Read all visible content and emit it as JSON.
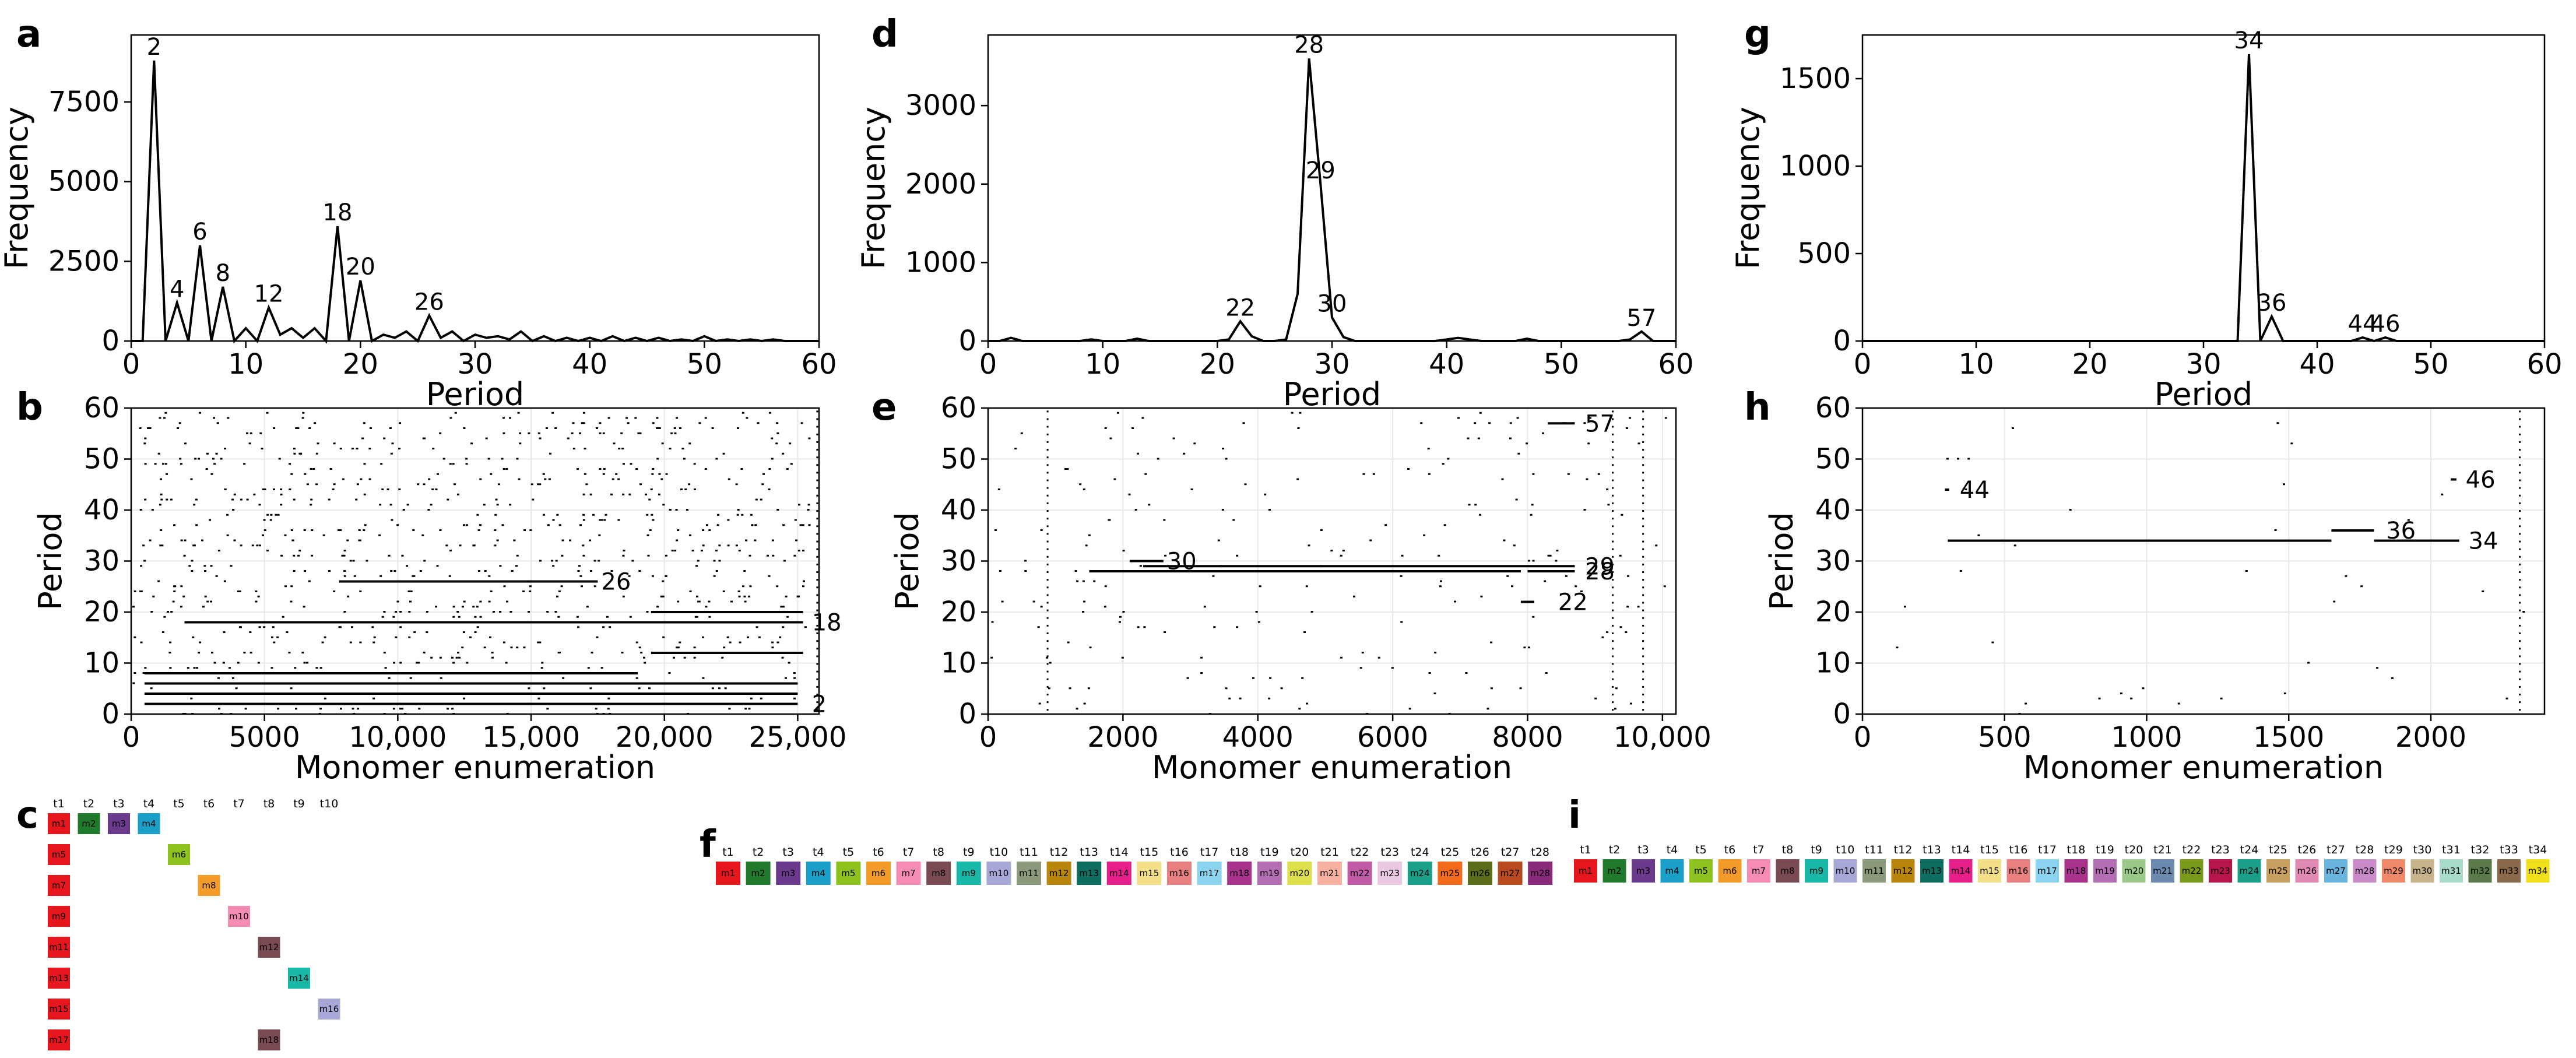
{
  "chart_data": [
    {
      "panel": "a",
      "type": "line",
      "xlabel": "Period",
      "ylabel": "Frequency",
      "xlim": [
        0,
        60
      ],
      "ylim": [
        0,
        9600
      ],
      "xticks": [
        0,
        10,
        20,
        30,
        40,
        50,
        60
      ],
      "xtick_labels": [
        "0",
        "10",
        "20",
        "30",
        "40",
        "50",
        "60"
      ],
      "yticks": [
        0,
        2500,
        5000,
        7500
      ],
      "ytick_labels": [
        "0",
        "2500",
        "5000",
        "7500"
      ],
      "x": [
        0,
        1,
        2,
        3,
        4,
        5,
        6,
        7,
        8,
        9,
        10,
        11,
        12,
        13,
        14,
        15,
        16,
        17,
        18,
        19,
        20,
        21,
        22,
        23,
        24,
        25,
        26,
        27,
        28,
        29,
        30,
        31,
        32,
        33,
        34,
        35,
        36,
        37,
        38,
        39,
        40,
        41,
        42,
        43,
        44,
        45,
        46,
        47,
        48,
        49,
        50,
        51,
        52,
        53,
        54,
        55,
        56,
        57,
        58,
        59,
        60
      ],
      "y": [
        0,
        0,
        8800,
        0,
        1200,
        0,
        3000,
        0,
        1700,
        0,
        400,
        0,
        1050,
        200,
        400,
        100,
        400,
        0,
        3600,
        0,
        1900,
        0,
        200,
        100,
        300,
        0,
        800,
        100,
        300,
        0,
        200,
        100,
        150,
        50,
        300,
        0,
        150,
        0,
        100,
        0,
        100,
        0,
        150,
        0,
        100,
        0,
        100,
        0,
        50,
        0,
        150,
        0,
        50,
        0,
        50,
        0,
        50,
        0,
        0,
        0,
        0
      ],
      "annotations": [
        {
          "x": 2,
          "y": 8800,
          "text": "2"
        },
        {
          "x": 4,
          "y": 1200,
          "text": "4"
        },
        {
          "x": 6,
          "y": 3000,
          "text": "6"
        },
        {
          "x": 8,
          "y": 1700,
          "text": "8"
        },
        {
          "x": 12,
          "y": 1050,
          "text": "12"
        },
        {
          "x": 18,
          "y": 3600,
          "text": "18"
        },
        {
          "x": 20,
          "y": 1900,
          "text": "20"
        },
        {
          "x": 26,
          "y": 800,
          "text": "26"
        }
      ]
    },
    {
      "panel": "d",
      "type": "line",
      "xlabel": "Period",
      "ylabel": "Frequency",
      "xlim": [
        0,
        60
      ],
      "ylim": [
        0,
        3900
      ],
      "xticks": [
        0,
        10,
        20,
        30,
        40,
        50,
        60
      ],
      "xtick_labels": [
        "0",
        "10",
        "20",
        "30",
        "40",
        "50",
        "60"
      ],
      "yticks": [
        0,
        1000,
        2000,
        3000
      ],
      "ytick_labels": [
        "0",
        "1000",
        "2000",
        "3000"
      ],
      "x": [
        0,
        1,
        2,
        3,
        4,
        5,
        6,
        7,
        8,
        9,
        10,
        11,
        12,
        13,
        14,
        15,
        16,
        17,
        18,
        19,
        20,
        21,
        22,
        23,
        24,
        25,
        26,
        27,
        28,
        29,
        30,
        31,
        32,
        33,
        34,
        35,
        36,
        37,
        38,
        39,
        40,
        41,
        42,
        43,
        44,
        45,
        46,
        47,
        48,
        49,
        50,
        51,
        52,
        53,
        54,
        55,
        56,
        57,
        58,
        59,
        60
      ],
      "y": [
        0,
        0,
        40,
        0,
        0,
        0,
        0,
        0,
        0,
        20,
        0,
        0,
        0,
        30,
        0,
        0,
        0,
        0,
        0,
        0,
        0,
        20,
        250,
        60,
        0,
        0,
        20,
        600,
        3600,
        2000,
        300,
        50,
        0,
        0,
        0,
        0,
        0,
        0,
        0,
        0,
        20,
        40,
        20,
        0,
        0,
        0,
        0,
        30,
        0,
        0,
        0,
        0,
        0,
        0,
        0,
        0,
        20,
        120,
        0,
        0,
        0
      ],
      "annotations": [
        {
          "x": 22,
          "y": 250,
          "text": "22"
        },
        {
          "x": 28,
          "y": 3600,
          "text": "28"
        },
        {
          "x": 29,
          "y": 2000,
          "text": "29"
        },
        {
          "x": 30,
          "y": 300,
          "text": "30"
        },
        {
          "x": 57,
          "y": 120,
          "text": "57"
        }
      ]
    },
    {
      "panel": "g",
      "type": "line",
      "xlabel": "Period",
      "ylabel": "Frequency",
      "xlim": [
        0,
        60
      ],
      "ylim": [
        0,
        1750
      ],
      "xticks": [
        0,
        10,
        20,
        30,
        40,
        50,
        60
      ],
      "xtick_labels": [
        "0",
        "10",
        "20",
        "30",
        "40",
        "50",
        "60"
      ],
      "yticks": [
        0,
        500,
        1000,
        1500
      ],
      "ytick_labels": [
        "0",
        "500",
        "1000",
        "1500"
      ],
      "x": [
        0,
        1,
        2,
        3,
        4,
        5,
        6,
        7,
        8,
        9,
        10,
        11,
        12,
        13,
        14,
        15,
        16,
        17,
        18,
        19,
        20,
        21,
        22,
        23,
        24,
        25,
        26,
        27,
        28,
        29,
        30,
        31,
        32,
        33,
        34,
        35,
        36,
        37,
        38,
        39,
        40,
        41,
        42,
        43,
        44,
        45,
        46,
        47,
        48,
        49,
        50,
        51,
        52,
        53,
        54,
        55,
        56,
        57,
        58,
        59,
        60
      ],
      "y": [
        0,
        0,
        0,
        0,
        0,
        0,
        0,
        0,
        0,
        0,
        0,
        0,
        0,
        0,
        0,
        0,
        0,
        0,
        0,
        0,
        0,
        0,
        0,
        0,
        0,
        0,
        0,
        0,
        0,
        0,
        0,
        0,
        0,
        0,
        1640,
        0,
        140,
        0,
        0,
        0,
        0,
        0,
        0,
        0,
        20,
        0,
        20,
        0,
        0,
        0,
        0,
        0,
        0,
        0,
        0,
        0,
        0,
        0,
        0,
        0,
        0
      ],
      "annotations": [
        {
          "x": 34,
          "y": 1640,
          "text": "34"
        },
        {
          "x": 36,
          "y": 140,
          "text": "36"
        },
        {
          "x": 44,
          "y": 20,
          "text": "44"
        },
        {
          "x": 46,
          "y": 20,
          "text": "46"
        }
      ]
    },
    {
      "panel": "b",
      "type": "scatter",
      "xlabel": "Monomer enumeration",
      "ylabel": "Period",
      "xlim": [
        0,
        25800
      ],
      "ylim": [
        0,
        60
      ],
      "xticks": [
        0,
        5000,
        10000,
        15000,
        20000,
        25000
      ],
      "xtick_labels": [
        "0",
        "5000",
        "10,000",
        "15,000",
        "20,000",
        "25,000"
      ],
      "yticks": [
        0,
        10,
        20,
        30,
        40,
        50,
        60
      ],
      "ytick_labels": [
        "0",
        "10",
        "20",
        "30",
        "40",
        "50",
        "60"
      ],
      "segments": [
        {
          "period": 2,
          "from": 500,
          "to": 25000
        },
        {
          "period": 4,
          "from": 500,
          "to": 25000
        },
        {
          "period": 6,
          "from": 500,
          "to": 25000
        },
        {
          "period": 8,
          "from": 500,
          "to": 19000
        },
        {
          "period": 12,
          "from": 19500,
          "to": 25200
        },
        {
          "period": 18,
          "from": 2000,
          "to": 25200
        },
        {
          "period": 20,
          "from": 19500,
          "to": 25200
        },
        {
          "period": 26,
          "from": 7800,
          "to": 17500
        }
      ],
      "annotations": [
        {
          "x": 25400,
          "y": 2,
          "text": "2"
        },
        {
          "x": 25400,
          "y": 18,
          "text": "18"
        },
        {
          "x": 17500,
          "y": 26,
          "text": "26"
        }
      ]
    },
    {
      "panel": "e",
      "type": "scatter",
      "xlabel": "Monomer enumeration",
      "ylabel": "Period",
      "xlim": [
        0,
        10200
      ],
      "ylim": [
        0,
        60
      ],
      "xticks": [
        0,
        2000,
        4000,
        6000,
        8000,
        10000
      ],
      "xtick_labels": [
        "0",
        "2000",
        "4000",
        "6000",
        "8000",
        "10,000"
      ],
      "yticks": [
        0,
        10,
        20,
        30,
        40,
        50,
        60
      ],
      "ytick_labels": [
        "0",
        "10",
        "20",
        "30",
        "40",
        "50",
        "60"
      ],
      "segments": [
        {
          "period": 28,
          "from": 1500,
          "to": 7900
        },
        {
          "period": 29,
          "from": 2300,
          "to": 8700
        },
        {
          "period": 30,
          "from": 2100,
          "to": 2600
        },
        {
          "period": 28,
          "from": 8000,
          "to": 8700
        },
        {
          "period": 22,
          "from": 7900,
          "to": 8100
        },
        {
          "period": 57,
          "from": 8300,
          "to": 8700
        }
      ],
      "annotations": [
        {
          "x": 2600,
          "y": 30,
          "text": "30"
        },
        {
          "x": 8800,
          "y": 29,
          "text": "29"
        },
        {
          "x": 8800,
          "y": 28,
          "text": "28"
        },
        {
          "x": 8400,
          "y": 22,
          "text": "22"
        },
        {
          "x": 8800,
          "y": 57,
          "text": "57"
        }
      ]
    },
    {
      "panel": "h",
      "type": "scatter",
      "xlabel": "Monomer enumeration",
      "ylabel": "Period",
      "xlim": [
        0,
        2400
      ],
      "ylim": [
        0,
        60
      ],
      "xticks": [
        0,
        500,
        1000,
        1500,
        2000
      ],
      "xtick_labels": [
        "0",
        "500",
        "1000",
        "1500",
        "2000"
      ],
      "yticks": [
        0,
        10,
        20,
        30,
        40,
        50,
        60
      ],
      "ytick_labels": [
        "0",
        "10",
        "20",
        "30",
        "40",
        "50",
        "60"
      ],
      "segments": [
        {
          "period": 34,
          "from": 300,
          "to": 1650
        },
        {
          "period": 36,
          "from": 1650,
          "to": 1800
        },
        {
          "period": 34,
          "from": 1800,
          "to": 2100
        },
        {
          "period": 44,
          "from": 290,
          "to": 305
        },
        {
          "period": 46,
          "from": 2070,
          "to": 2090
        }
      ],
      "annotations": [
        {
          "x": 330,
          "y": 44,
          "text": "44"
        },
        {
          "x": 1830,
          "y": 36,
          "text": "36"
        },
        {
          "x": 2120,
          "y": 34,
          "text": "34"
        },
        {
          "x": 2110,
          "y": 46,
          "text": "46"
        }
      ]
    }
  ],
  "panel_letters": [
    "a",
    "b",
    "c",
    "d",
    "e",
    "f",
    "g",
    "h",
    "i"
  ],
  "grid_c": {
    "headers": [
      "t1",
      "t2",
      "t3",
      "t4",
      "t5",
      "t6",
      "t7",
      "t8",
      "t9",
      "t10"
    ],
    "rows": [
      [
        {
          "col": 0,
          "label": "m1",
          "color": "#e6161d"
        },
        {
          "col": 1,
          "label": "m2",
          "color": "#1f7a2c"
        },
        {
          "col": 2,
          "label": "m3",
          "color": "#6b3a8c"
        },
        {
          "col": 3,
          "label": "m4",
          "color": "#1aa0c8"
        }
      ],
      [
        {
          "col": 0,
          "label": "m5",
          "color": "#e6161d"
        },
        {
          "col": 4,
          "label": "m6",
          "color": "#8dc21f"
        }
      ],
      [
        {
          "col": 0,
          "label": "m7",
          "color": "#e6161d"
        },
        {
          "col": 5,
          "label": "m8",
          "color": "#f39c2a"
        }
      ],
      [
        {
          "col": 0,
          "label": "m9",
          "color": "#e6161d"
        },
        {
          "col": 6,
          "label": "m10",
          "color": "#f58cb4"
        }
      ],
      [
        {
          "col": 0,
          "label": "m11",
          "color": "#e6161d"
        },
        {
          "col": 7,
          "label": "m12",
          "color": "#7a4a52"
        }
      ],
      [
        {
          "col": 0,
          "label": "m13",
          "color": "#e6161d"
        },
        {
          "col": 8,
          "label": "m14",
          "color": "#1ab8a8"
        }
      ],
      [
        {
          "col": 0,
          "label": "m15",
          "color": "#e6161d"
        },
        {
          "col": 9,
          "label": "m16",
          "color": "#a8a8d8"
        }
      ],
      [
        {
          "col": 0,
          "label": "m17",
          "color": "#e6161d"
        },
        {
          "col": 7,
          "label": "m18",
          "color": "#7a4a52"
        }
      ]
    ]
  },
  "grid_f": {
    "headers": [
      "t1",
      "t2",
      "t3",
      "t4",
      "t5",
      "t6",
      "t7",
      "t8",
      "t9",
      "t10",
      "t11",
      "t12",
      "t13",
      "t14",
      "t15",
      "t16",
      "t17",
      "t18",
      "t19",
      "t20",
      "t21",
      "t22",
      "t23",
      "t24",
      "t25",
      "t26",
      "t27",
      "t28"
    ],
    "cells": [
      {
        "label": "m1",
        "color": "#e6161d"
      },
      {
        "label": "m2",
        "color": "#1f7a2c"
      },
      {
        "label": "m3",
        "color": "#6b3a8c"
      },
      {
        "label": "m4",
        "color": "#1aa0c8"
      },
      {
        "label": "m5",
        "color": "#8dc21f"
      },
      {
        "label": "m6",
        "color": "#f39c2a"
      },
      {
        "label": "m7",
        "color": "#f58cb4"
      },
      {
        "label": "m8",
        "color": "#7a4a52"
      },
      {
        "label": "m9",
        "color": "#1ab8a8"
      },
      {
        "label": "m10",
        "color": "#a8a8d8"
      },
      {
        "label": "m11",
        "color": "#8a9a7a"
      },
      {
        "label": "m12",
        "color": "#b8860b"
      },
      {
        "label": "m13",
        "color": "#0e6e62"
      },
      {
        "label": "m14",
        "color": "#e61e8c"
      },
      {
        "label": "m15",
        "color": "#f5e08a"
      },
      {
        "label": "m16",
        "color": "#e88080"
      },
      {
        "label": "m17",
        "color": "#8ad4f0"
      },
      {
        "label": "m18",
        "color": "#a8328c"
      },
      {
        "label": "m19",
        "color": "#b46eb4"
      },
      {
        "label": "m20",
        "color": "#dde04a"
      },
      {
        "label": "m21",
        "color": "#f5b0a0"
      },
      {
        "label": "m22",
        "color": "#c25aa8"
      },
      {
        "label": "m23",
        "color": "#e8c8e0"
      },
      {
        "label": "m24",
        "color": "#1aa08a"
      },
      {
        "label": "m25",
        "color": "#f26a1a"
      },
      {
        "label": "m26",
        "color": "#5a6e1a"
      },
      {
        "label": "m27",
        "color": "#b84a1e"
      },
      {
        "label": "m28",
        "color": "#8a2a7a"
      }
    ]
  },
  "grid_i": {
    "headers": [
      "t1",
      "t2",
      "t3",
      "t4",
      "t5",
      "t6",
      "t7",
      "t8",
      "t9",
      "t10",
      "t11",
      "t12",
      "t13",
      "t14",
      "t15",
      "t16",
      "t17",
      "t18",
      "t19",
      "t20",
      "t21",
      "t22",
      "t23",
      "t24",
      "t25",
      "t26",
      "t27",
      "t28",
      "t29",
      "t30",
      "t31",
      "t32",
      "t33",
      "t34"
    ],
    "cells": [
      {
        "label": "m1",
        "color": "#e6161d"
      },
      {
        "label": "m2",
        "color": "#1f7a2c"
      },
      {
        "label": "m3",
        "color": "#6b3a8c"
      },
      {
        "label": "m4",
        "color": "#1aa0c8"
      },
      {
        "label": "m5",
        "color": "#8dc21f"
      },
      {
        "label": "m6",
        "color": "#f39c2a"
      },
      {
        "label": "m7",
        "color": "#f58cb4"
      },
      {
        "label": "m8",
        "color": "#7a4a52"
      },
      {
        "label": "m9",
        "color": "#1ab8a8"
      },
      {
        "label": "m10",
        "color": "#a8a8d8"
      },
      {
        "label": "m11",
        "color": "#8a9a7a"
      },
      {
        "label": "m12",
        "color": "#b8860b"
      },
      {
        "label": "m13",
        "color": "#0e6e62"
      },
      {
        "label": "m14",
        "color": "#e61e8c"
      },
      {
        "label": "m15",
        "color": "#f5e08a"
      },
      {
        "label": "m16",
        "color": "#e88080"
      },
      {
        "label": "m17",
        "color": "#8ad4f0"
      },
      {
        "label": "m18",
        "color": "#a8328c"
      },
      {
        "label": "m19",
        "color": "#b46eb4"
      },
      {
        "label": "m20",
        "color": "#9cc88a"
      },
      {
        "label": "m21",
        "color": "#6a8ab0"
      },
      {
        "label": "m22",
        "color": "#7a9a1a"
      },
      {
        "label": "m23",
        "color": "#b8164a"
      },
      {
        "label": "m24",
        "color": "#1aa08a"
      },
      {
        "label": "m25",
        "color": "#c8a060"
      },
      {
        "label": "m26",
        "color": "#e08ab4"
      },
      {
        "label": "m27",
        "color": "#6ab4e0"
      },
      {
        "label": "m28",
        "color": "#c88ac8"
      },
      {
        "label": "m29",
        "color": "#f08a6a"
      },
      {
        "label": "m30",
        "color": "#c8b48a"
      },
      {
        "label": "m31",
        "color": "#a8dcc8"
      },
      {
        "label": "m32",
        "color": "#5a7a4a"
      },
      {
        "label": "m33",
        "color": "#8a6a4a"
      },
      {
        "label": "m34",
        "color": "#f0e01a"
      }
    ]
  }
}
